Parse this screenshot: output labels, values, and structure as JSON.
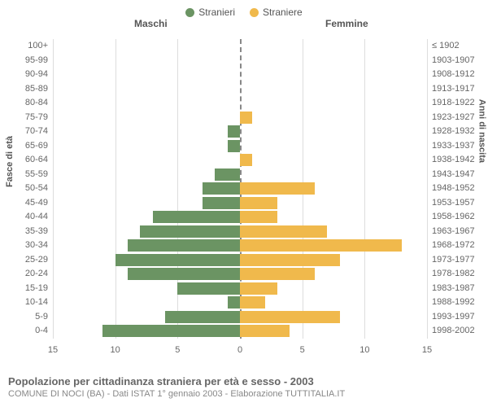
{
  "legend": {
    "male": {
      "label": "Stranieri",
      "color": "#6b9463"
    },
    "female": {
      "label": "Straniere",
      "color": "#f0b94c"
    }
  },
  "headers": {
    "male": "Maschi",
    "female": "Femmine"
  },
  "axis_titles": {
    "left": "Fasce di età",
    "right": "Anni di nascita"
  },
  "x_axis": {
    "max": 15,
    "ticks": [
      15,
      10,
      5,
      0,
      5,
      10,
      15
    ]
  },
  "grid_color": "#dddddd",
  "axis_color": "#888888",
  "background_color": "#ffffff",
  "bar_colors": {
    "male": "#6b9463",
    "female": "#f0b94c"
  },
  "rows": [
    {
      "age": "100+",
      "birth": "≤ 1902",
      "m": 0,
      "f": 0
    },
    {
      "age": "95-99",
      "birth": "1903-1907",
      "m": 0,
      "f": 0
    },
    {
      "age": "90-94",
      "birth": "1908-1912",
      "m": 0,
      "f": 0
    },
    {
      "age": "85-89",
      "birth": "1913-1917",
      "m": 0,
      "f": 0
    },
    {
      "age": "80-84",
      "birth": "1918-1922",
      "m": 0,
      "f": 0
    },
    {
      "age": "75-79",
      "birth": "1923-1927",
      "m": 0,
      "f": 1
    },
    {
      "age": "70-74",
      "birth": "1928-1932",
      "m": 1,
      "f": 0
    },
    {
      "age": "65-69",
      "birth": "1933-1937",
      "m": 1,
      "f": 0
    },
    {
      "age": "60-64",
      "birth": "1938-1942",
      "m": 0,
      "f": 1
    },
    {
      "age": "55-59",
      "birth": "1943-1947",
      "m": 2,
      "f": 0
    },
    {
      "age": "50-54",
      "birth": "1948-1952",
      "m": 3,
      "f": 6
    },
    {
      "age": "45-49",
      "birth": "1953-1957",
      "m": 3,
      "f": 3
    },
    {
      "age": "40-44",
      "birth": "1958-1962",
      "m": 7,
      "f": 3
    },
    {
      "age": "35-39",
      "birth": "1963-1967",
      "m": 8,
      "f": 7
    },
    {
      "age": "30-34",
      "birth": "1968-1972",
      "m": 9,
      "f": 13
    },
    {
      "age": "25-29",
      "birth": "1973-1977",
      "m": 10,
      "f": 8
    },
    {
      "age": "20-24",
      "birth": "1978-1982",
      "m": 9,
      "f": 6
    },
    {
      "age": "15-19",
      "birth": "1983-1987",
      "m": 5,
      "f": 3
    },
    {
      "age": "10-14",
      "birth": "1988-1992",
      "m": 1,
      "f": 2
    },
    {
      "age": "5-9",
      "birth": "1993-1997",
      "m": 6,
      "f": 8
    },
    {
      "age": "0-4",
      "birth": "1998-2002",
      "m": 11,
      "f": 4
    }
  ],
  "title": "Popolazione per cittadinanza straniera per età e sesso - 2003",
  "subtitle": "COMUNE DI NOCI (BA) - Dati ISTAT 1° gennaio 2003 - Elaborazione TUTTITALIA.IT"
}
